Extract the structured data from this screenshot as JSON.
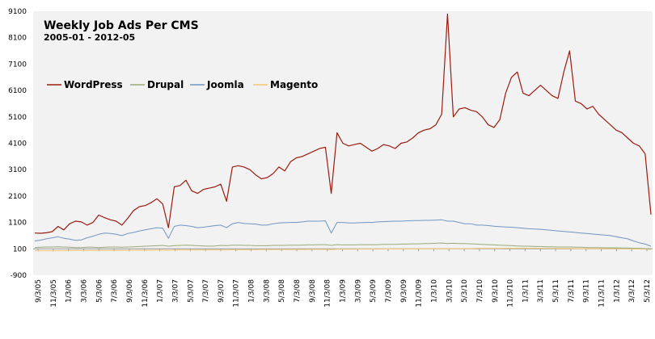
{
  "chart_data": {
    "type": "line",
    "title": "Weekly Job Ads Per CMS",
    "subtitle": "2005-01 - 2012-05",
    "xlabel": "",
    "ylabel": "",
    "ylim": [
      -900,
      9100
    ],
    "y_ticks": [
      -900,
      100,
      1100,
      2100,
      3100,
      4100,
      5100,
      6100,
      7100,
      8100,
      9100
    ],
    "grid": false,
    "legend_position": "top-left",
    "x_tick_labels": [
      "9/3/05",
      "11/3/05",
      "1/3/06",
      "3/3/06",
      "5/3/06",
      "7/3/06",
      "9/3/06",
      "11/3/06",
      "1/3/07",
      "3/3/07",
      "5/3/07",
      "7/3/07",
      "9/3/07",
      "11/3/07",
      "1/3/08",
      "3/3/08",
      "5/3/08",
      "7/3/08",
      "9/3/08",
      "11/3/08",
      "1/3/09",
      "3/3/09",
      "5/3/09",
      "7/3/09",
      "9/3/09",
      "11/3/09",
      "1/3/10",
      "3/3/10",
      "5/3/10",
      "7/3/10",
      "9/3/10",
      "11/3/10",
      "1/3/11",
      "3/3/11",
      "5/3/11",
      "7/3/11",
      "9/3/11",
      "11/3/11",
      "1/3/12",
      "3/3/12",
      "5/3/12"
    ],
    "series": [
      {
        "name": "WordPress",
        "color": "#9b1c10",
        "values": [
          700,
          690,
          710,
          750,
          950,
          820,
          1050,
          1150,
          1120,
          1000,
          1100,
          1380,
          1280,
          1200,
          1150,
          1000,
          1260,
          1550,
          1700,
          1740,
          1850,
          2000,
          1800,
          900,
          2450,
          2500,
          2700,
          2300,
          2200,
          2350,
          2400,
          2450,
          2550,
          1900,
          3200,
          3250,
          3200,
          3100,
          2900,
          2750,
          2800,
          2950,
          3200,
          3050,
          3400,
          3550,
          3600,
          3700,
          3800,
          3900,
          3950,
          2200,
          4500,
          4100,
          4000,
          4050,
          4100,
          3950,
          3800,
          3900,
          4050,
          4000,
          3900,
          4100,
          4150,
          4300,
          4500,
          4600,
          4650,
          4800,
          5200,
          9000,
          5100,
          5400,
          5450,
          5350,
          5300,
          5100,
          4800,
          4700,
          5000,
          6000,
          6600,
          6800,
          6000,
          5900,
          6100,
          6300,
          6100,
          5900,
          5800,
          6800,
          7600,
          5700,
          5600,
          5400,
          5500,
          5200,
          5000,
          4800,
          4600,
          4500,
          4300,
          4100,
          4000,
          3700,
          1400
        ]
      },
      {
        "name": "Drupal",
        "color": "#9aaa7a",
        "values": [
          150,
          160,
          170,
          170,
          180,
          170,
          160,
          150,
          150,
          160,
          160,
          150,
          160,
          170,
          170,
          160,
          170,
          180,
          190,
          200,
          210,
          220,
          230,
          200,
          220,
          230,
          240,
          230,
          220,
          210,
          200,
          210,
          230,
          220,
          240,
          240,
          230,
          230,
          220,
          220,
          220,
          230,
          230,
          230,
          240,
          240,
          240,
          250,
          250,
          260,
          260,
          230,
          260,
          250,
          250,
          250,
          260,
          260,
          260,
          260,
          270,
          270,
          270,
          280,
          280,
          290,
          290,
          300,
          300,
          310,
          320,
          300,
          310,
          300,
          300,
          290,
          280,
          270,
          260,
          250,
          240,
          230,
          220,
          210,
          200,
          200,
          190,
          190,
          180,
          180,
          170,
          170,
          170,
          160,
          160,
          150,
          150,
          150,
          140,
          140,
          140,
          130,
          130,
          120,
          120,
          110,
          100
        ]
      },
      {
        "name": "Joomla",
        "color": "#7095c4",
        "values": [
          400,
          430,
          480,
          520,
          560,
          500,
          470,
          420,
          440,
          520,
          580,
          650,
          700,
          680,
          650,
          600,
          680,
          720,
          780,
          820,
          860,
          900,
          880,
          500,
          950,
          1000,
          980,
          950,
          900,
          920,
          950,
          980,
          1000,
          900,
          1050,
          1100,
          1060,
          1050,
          1040,
          1000,
          1000,
          1050,
          1080,
          1090,
          1100,
          1100,
          1120,
          1150,
          1150,
          1150,
          1160,
          700,
          1100,
          1100,
          1080,
          1080,
          1090,
          1100,
          1100,
          1120,
          1130,
          1140,
          1150,
          1150,
          1160,
          1170,
          1170,
          1180,
          1180,
          1190,
          1200,
          1150,
          1150,
          1100,
          1050,
          1050,
          1000,
          1000,
          980,
          960,
          940,
          930,
          920,
          900,
          880,
          860,
          850,
          840,
          820,
          800,
          780,
          760,
          740,
          720,
          700,
          680,
          660,
          640,
          620,
          600,
          560,
          520,
          480,
          400,
          330,
          280,
          200
        ]
      },
      {
        "name": "Magento",
        "color": "#f4c870",
        "values": [
          30,
          30,
          30,
          30,
          30,
          30,
          35,
          35,
          35,
          35,
          35,
          40,
          40,
          40,
          40,
          40,
          40,
          45,
          45,
          45,
          45,
          50,
          50,
          40,
          55,
          55,
          55,
          55,
          55,
          60,
          60,
          60,
          60,
          55,
          65,
          65,
          65,
          65,
          65,
          70,
          70,
          70,
          70,
          75,
          75,
          75,
          75,
          80,
          80,
          80,
          80,
          70,
          85,
          85,
          85,
          85,
          90,
          90,
          90,
          90,
          95,
          95,
          95,
          100,
          100,
          100,
          100,
          105,
          105,
          105,
          110,
          100,
          110,
          110,
          110,
          110,
          115,
          115,
          115,
          115,
          115,
          120,
          120,
          120,
          120,
          120,
          120,
          120,
          115,
          115,
          115,
          115,
          115,
          110,
          110,
          110,
          110,
          110,
          105,
          105,
          105,
          100,
          100,
          95,
          95,
          90,
          80
        ]
      }
    ]
  }
}
